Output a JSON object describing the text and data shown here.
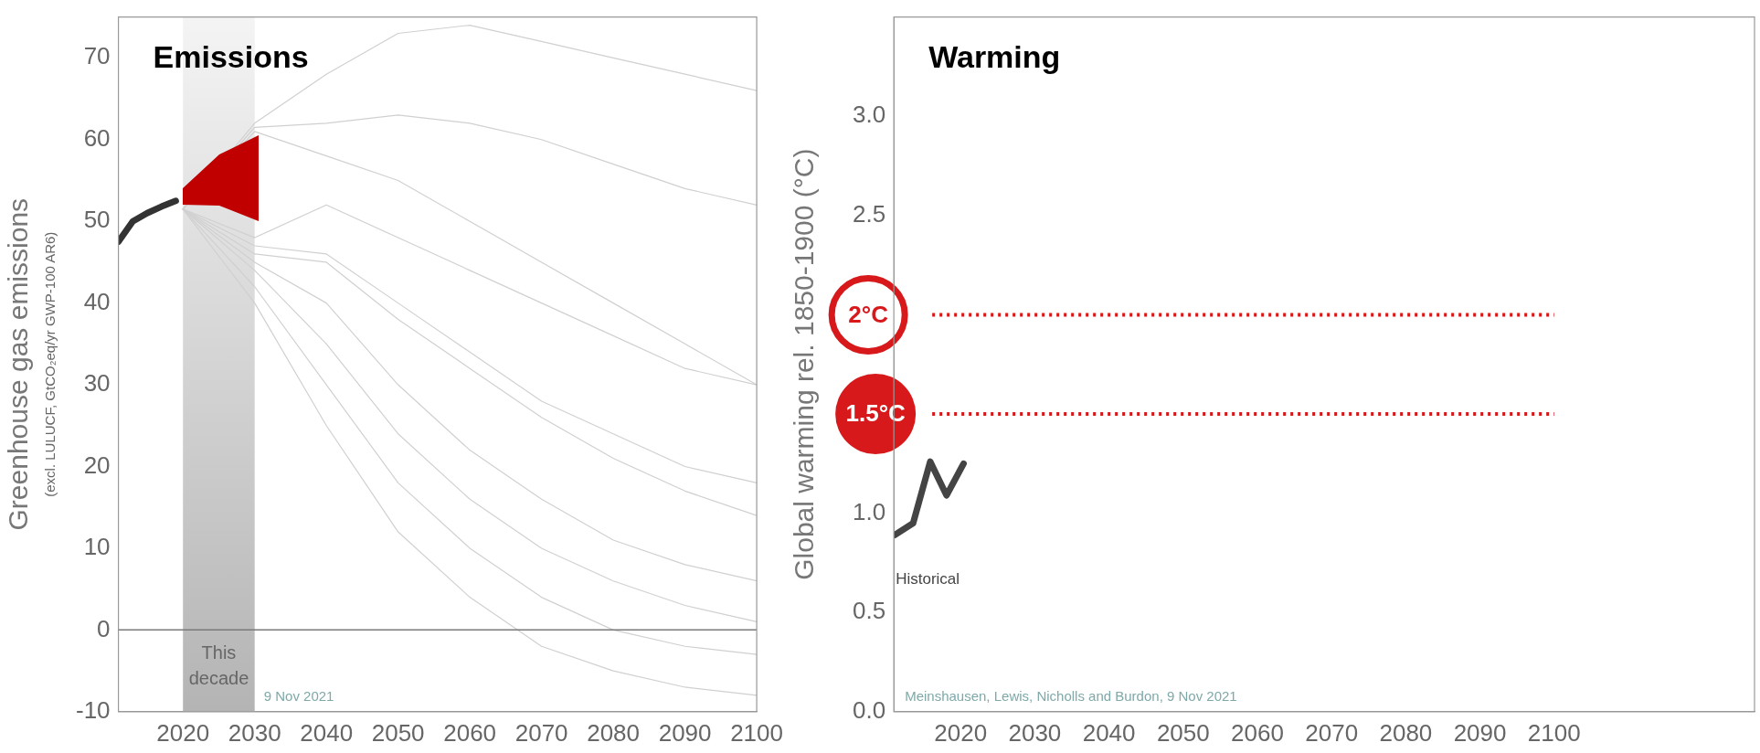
{
  "chart_data": [
    {
      "type": "line",
      "title": "Emissions",
      "ylabel": "Greenhouse gas emissions\n(excl. LULUCF, GtCO₂eq/yr GWP-100 AR6)",
      "xlim": [
        2011,
        2100
      ],
      "xticks": [
        2020,
        2030,
        2040,
        2050,
        2060,
        2070,
        2080,
        2090,
        2100
      ],
      "ylim": [
        -10,
        75
      ],
      "yticks": [
        -10,
        0,
        10,
        20,
        30,
        40,
        50,
        60,
        70
      ],
      "bands": [
        {
          "axis": "x",
          "from": 2020,
          "to": 2030,
          "label": "This decade",
          "color": "#b4b4b4"
        }
      ],
      "ref_lines": [
        {
          "axis": "y",
          "value": 0,
          "label": null,
          "color": "#7a7a7a",
          "line_style": "solid"
        }
      ],
      "annotations": [
        "9 Nov 2021"
      ],
      "series": [
        {
          "color": "#d0d0d0",
          "x": [
            2020,
            2030,
            2040,
            2050,
            2060,
            2070,
            2080,
            2090,
            2100
          ],
          "values": [
            51.5,
            62,
            68,
            73,
            74,
            72,
            70,
            68,
            66
          ]
        },
        {
          "color": "#d0d0d0",
          "x": [
            2020,
            2030,
            2040,
            2050,
            2060,
            2070,
            2080,
            2090,
            2100
          ],
          "values": [
            51.5,
            61.5,
            62,
            63,
            62,
            60,
            57,
            54,
            52
          ]
        },
        {
          "color": "#d0d0d0",
          "x": [
            2020,
            2030,
            2040,
            2050,
            2060,
            2070,
            2080,
            2090,
            2100
          ],
          "values": [
            51.5,
            61,
            58,
            55,
            50,
            45,
            40,
            35,
            30
          ]
        },
        {
          "color": "#d0d0d0",
          "x": [
            2020,
            2030,
            2040,
            2050,
            2060,
            2070,
            2080,
            2090,
            2100
          ],
          "values": [
            51.5,
            48,
            52,
            48,
            44,
            40,
            36,
            32,
            30
          ]
        },
        {
          "color": "#d0d0d0",
          "x": [
            2020,
            2030,
            2040,
            2050,
            2060,
            2070,
            2080,
            2090,
            2100
          ],
          "values": [
            51.5,
            47,
            46,
            40,
            34,
            28,
            24,
            20,
            18
          ]
        },
        {
          "color": "#d0d0d0",
          "x": [
            2020,
            2030,
            2040,
            2050,
            2060,
            2070,
            2080,
            2090,
            2100
          ],
          "values": [
            51.5,
            46,
            45,
            38,
            32,
            26,
            21,
            17,
            14
          ]
        },
        {
          "color": "#d0d0d0",
          "x": [
            2020,
            2030,
            2040,
            2050,
            2060,
            2070,
            2080,
            2090,
            2100
          ],
          "values": [
            51.5,
            45,
            40,
            30,
            22,
            16,
            11,
            8,
            6
          ]
        },
        {
          "color": "#d0d0d0",
          "x": [
            2020,
            2030,
            2040,
            2050,
            2060,
            2070,
            2080,
            2090,
            2100
          ],
          "values": [
            51.5,
            44,
            35,
            24,
            16,
            10,
            6,
            3,
            1
          ]
        },
        {
          "color": "#d0d0d0",
          "x": [
            2020,
            2030,
            2040,
            2050,
            2060,
            2070,
            2080,
            2090,
            2100
          ],
          "values": [
            51.5,
            42,
            30,
            18,
            10,
            4,
            0,
            -2,
            -3
          ]
        },
        {
          "color": "#d0d0d0",
          "x": [
            2020,
            2030,
            2040,
            2050,
            2060,
            2070,
            2080,
            2090,
            2100
          ],
          "values": [
            51.5,
            40,
            25,
            12,
            4,
            -2,
            -5,
            -7,
            -8
          ]
        },
        {
          "color": "#333333",
          "x": [
            2011,
            2013,
            2015,
            2017,
            2019
          ],
          "values": [
            47.5,
            50,
            51,
            51.8,
            52.5
          ]
        }
      ]
    },
    {
      "type": "line",
      "title": "Warming",
      "ylabel": "Global warming rel. 1850-1900 (°C)",
      "xlim": [
        2011,
        2127
      ],
      "xticks": [
        2020,
        2030,
        2040,
        2050,
        2060,
        2070,
        2080,
        2090,
        2100
      ],
      "ylim": [
        0,
        3.5
      ],
      "yticks": [
        {
          "value": 0,
          "label": "0.0"
        },
        {
          "value": 0.5,
          "label": "0.5"
        },
        {
          "value": 1,
          "label": "1.0"
        },
        {
          "value": 1.5,
          "label": null
        },
        {
          "value": 2,
          "label": null
        },
        {
          "value": 2.5,
          "label": "2.5"
        },
        {
          "value": 3,
          "label": "3.0"
        }
      ],
      "ref_lines": [
        {
          "axis": "y",
          "value": 2,
          "label": "2°C",
          "color": "#d7191c",
          "line_style": "dotted"
        },
        {
          "axis": "y",
          "value": 1.5,
          "label": "1.5°C",
          "color": "#d7191c",
          "line_style": "dotted"
        }
      ],
      "annotations": [
        "Meinshausen, Lewis, Nicholls and Burdon, 9 Nov 2021"
      ],
      "series": [
        {
          "name": "Historical",
          "color": "#444444",
          "x": [
            2011.1,
            2013.6,
            2015.9,
            2018.1,
            2020.4
          ],
          "values": [
            0.89,
            0.95,
            1.26,
            1.09,
            1.25
          ]
        }
      ]
    }
  ]
}
